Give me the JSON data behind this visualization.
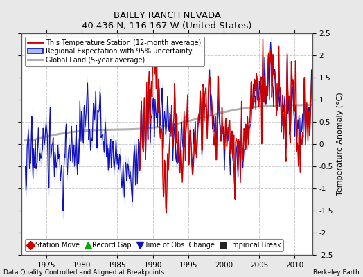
{
  "title": "BAILEY RANCH NEVADA",
  "subtitle": "40.436 N, 116.167 W (United States)",
  "xlabel_bottom": "Data Quality Controlled and Aligned at Breakpoints",
  "xlabel_right": "Berkeley Earth",
  "ylabel": "Temperature Anomaly (°C)",
  "xlim": [
    1971.5,
    2012.5
  ],
  "ylim": [
    -2.5,
    2.5
  ],
  "yticks": [
    -2.5,
    -2,
    -1.5,
    -1,
    -0.5,
    0,
    0.5,
    1,
    1.5,
    2,
    2.5
  ],
  "xticks": [
    1975,
    1980,
    1985,
    1990,
    1995,
    2000,
    2005,
    2010
  ],
  "bg_color": "#e8e8e8",
  "plot_bg_color": "#ffffff",
  "grid_color": "#cccccc",
  "station_color": "#cc0000",
  "regional_color": "#1111bb",
  "regional_fill": "#aabbee",
  "global_color": "#b0b0b0",
  "legend_station": "This Temperature Station (12-month average)",
  "legend_regional": "Regional Expectation with 95% uncertainty",
  "legend_global": "Global Land (5-year average)",
  "marker_station_move_label": "Station Move",
  "marker_station_move_color": "#cc0000",
  "marker_record_gap_label": "Record Gap",
  "marker_record_gap_color": "#00aa00",
  "marker_obs_change_label": "Time of Obs. Change",
  "marker_obs_change_color": "#1111bb",
  "marker_emp_break_label": "Empirical Break",
  "marker_emp_break_color": "#222222",
  "seed": 17
}
